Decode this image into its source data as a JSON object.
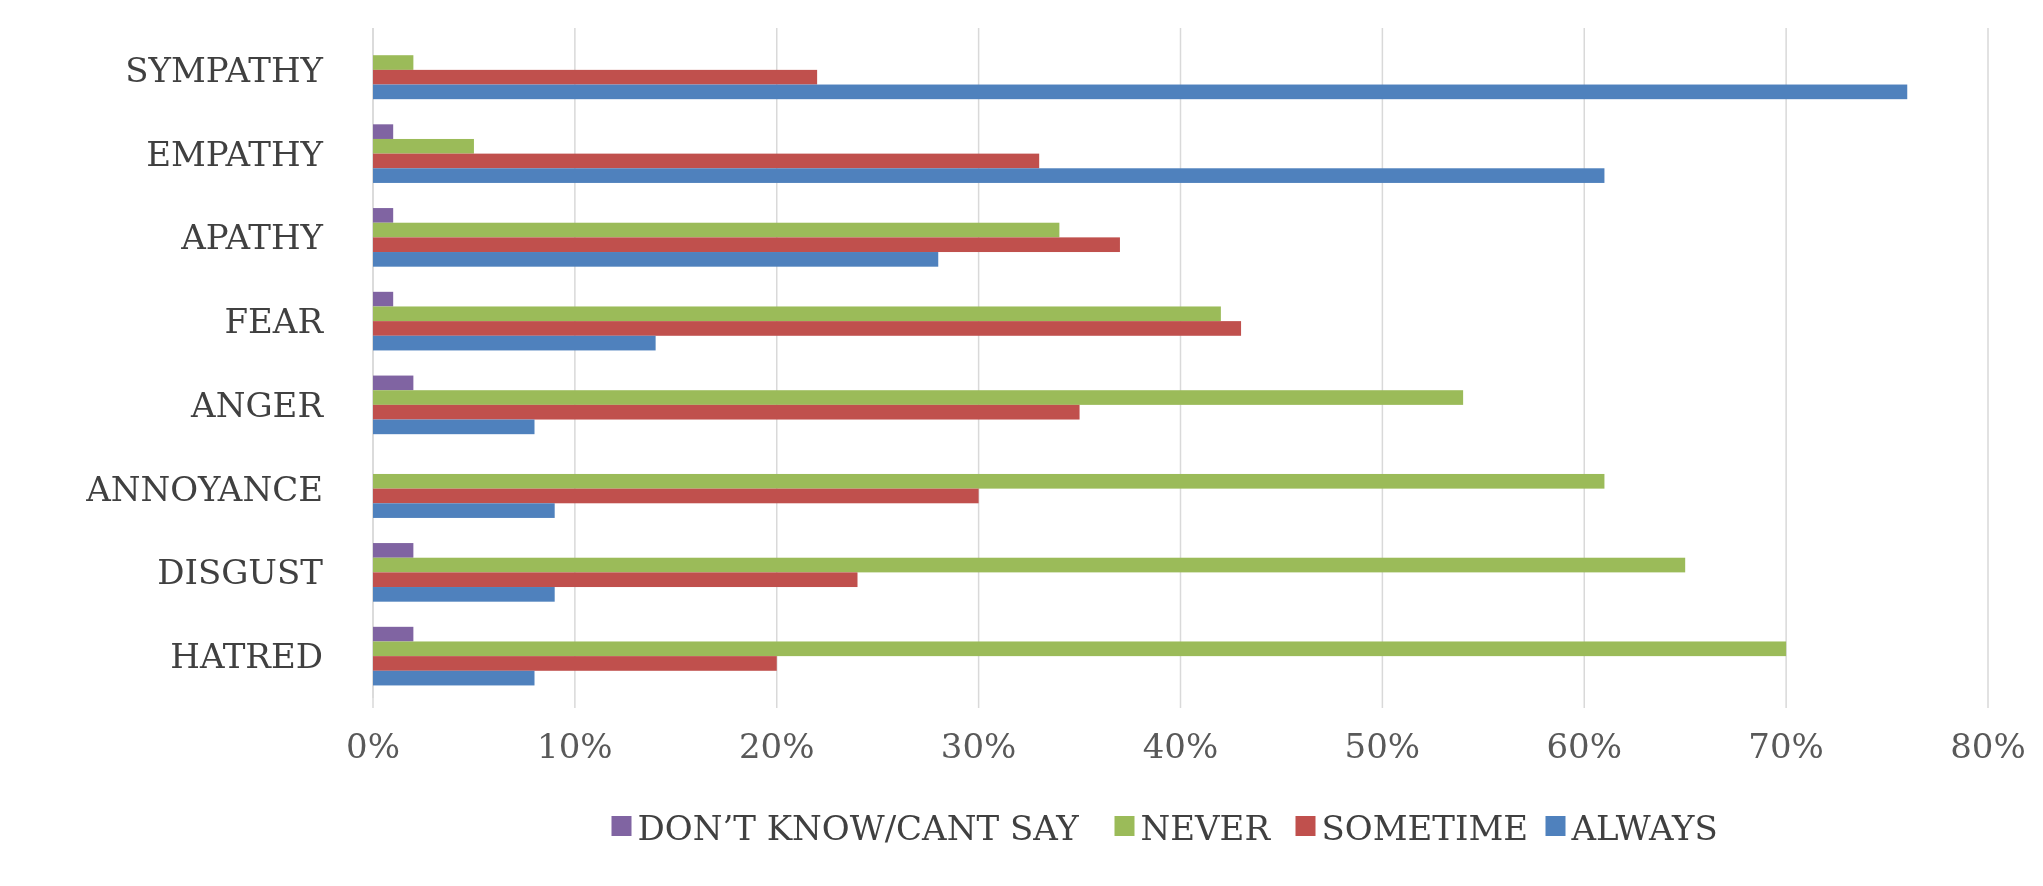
{
  "chart_data": {
    "type": "bar",
    "orientation": "horizontal",
    "categories": [
      "SYMPATHY",
      "EMPATHY",
      "APATHY",
      "FEAR",
      "ANGER",
      "ANNOYANCE",
      "DISGUST",
      "HATRED"
    ],
    "series": [
      {
        "name": "DON’T KNOW/CANT SAY",
        "color": "#8064a2",
        "values": [
          null,
          1,
          1,
          1,
          2,
          null,
          2,
          2
        ]
      },
      {
        "name": "NEVER",
        "color": "#9bbb59",
        "values": [
          2,
          5,
          34,
          42,
          54,
          61,
          65,
          70
        ]
      },
      {
        "name": "SOMETIME",
        "color": "#c0504d",
        "values": [
          22,
          33,
          37,
          43,
          35,
          30,
          24,
          20
        ]
      },
      {
        "name": "ALWAYS",
        "color": "#4f81bd",
        "values": [
          76,
          61,
          28,
          14,
          8,
          9,
          9,
          8
        ]
      }
    ],
    "xlim": [
      0,
      80
    ],
    "xticks": [
      {
        "value": 0,
        "label": "0%"
      },
      {
        "value": 10,
        "label": "10%"
      },
      {
        "value": 20,
        "label": "20%"
      },
      {
        "value": 30,
        "label": "30%"
      },
      {
        "value": 40,
        "label": "40%"
      },
      {
        "value": 50,
        "label": "50%"
      },
      {
        "value": 60,
        "label": "60%"
      },
      {
        "value": 70,
        "label": "70%"
      },
      {
        "value": 80,
        "label": "80%"
      }
    ],
    "grid": "x",
    "legend": "bottom"
  }
}
